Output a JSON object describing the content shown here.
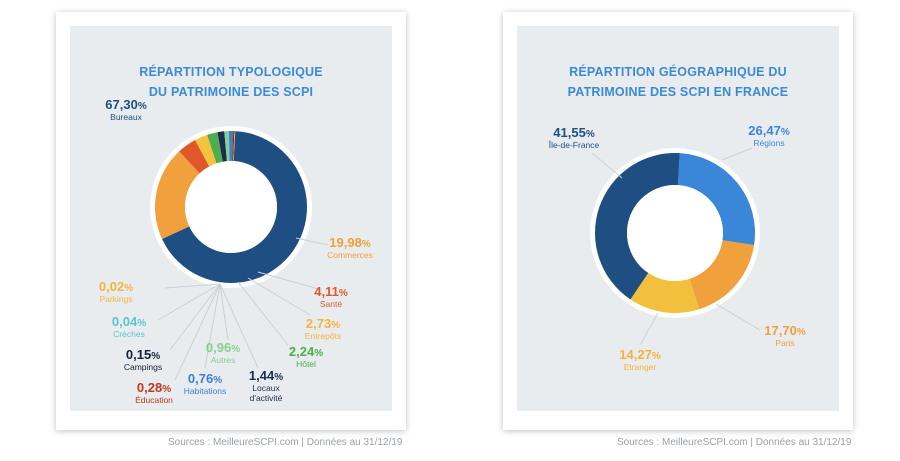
{
  "source_left": "Sources : MeilleureSCPI.com  | Données au 31/12/19",
  "source_right": "Sources : MeilleureSCPI.com  | Données au 31/12/19",
  "chart_data": [
    {
      "type": "pie",
      "title": [
        "RÉPARTITION TYPOLOGIQUE",
        "DU PATRIMOINE DES SCPI"
      ],
      "slices": [
        {
          "label": "Bureaux",
          "pct_label": "67,30%",
          "value": 67.3,
          "color": "#1f4f82"
        },
        {
          "label": "Commerces",
          "pct_label": "19,98%",
          "value": 19.98,
          "color": "#f0a03c"
        },
        {
          "label": "Santé",
          "pct_label": "4,11%",
          "value": 4.11,
          "color": "#e0582a"
        },
        {
          "label": "Entrepôts",
          "pct_label": "2,73%",
          "value": 2.73,
          "color": "#f3c33e"
        },
        {
          "label": "Hôtel",
          "pct_label": "2,24%",
          "value": 2.24,
          "color": "#4cae4f"
        },
        {
          "label": "Locaux d'activité",
          "pct_label": "1,44%",
          "value": 1.44,
          "color": "#1b2b52"
        },
        {
          "label": "Autres",
          "pct_label": "0,96%",
          "value": 0.96,
          "color": "#86cf8e"
        },
        {
          "label": "Habitations",
          "pct_label": "0,76%",
          "value": 0.76,
          "color": "#3b7fd6"
        },
        {
          "label": "Éducation",
          "pct_label": "0,28%",
          "value": 0.28,
          "color": "#c0391b"
        },
        {
          "label": "Campings",
          "pct_label": "0,15%",
          "value": 0.15,
          "color": "#14213d"
        },
        {
          "label": "Crèches",
          "pct_label": "0,04%",
          "value": 0.04,
          "color": "#5cc5cf"
        },
        {
          "label": "Parkings",
          "pct_label": "0,02%",
          "value": 0.02,
          "color": "#f5c857"
        }
      ]
    },
    {
      "type": "pie",
      "title": [
        "RÉPARTITION GÉOGRAPHIQUE DU",
        "PATRIMOINE DES SCPI EN FRANCE"
      ],
      "slices": [
        {
          "label": "Régions",
          "pct_label": "26,47%",
          "value": 26.47,
          "color": "#3a86d8"
        },
        {
          "label": "Paris",
          "pct_label": "17,70%",
          "value": 17.7,
          "color": "#f0a03c"
        },
        {
          "label": "Etranger",
          "pct_label": "14,27%",
          "value": 14.27,
          "color": "#f3c03e"
        },
        {
          "label": "Île-de-France",
          "pct_label": "41,55%",
          "value": 41.55,
          "color": "#1f4f82"
        }
      ]
    }
  ]
}
